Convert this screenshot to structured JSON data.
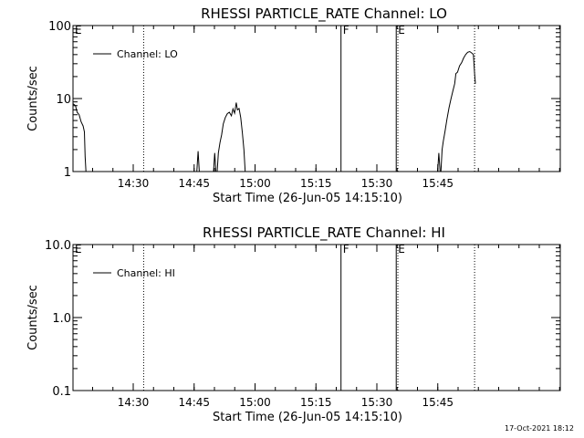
{
  "footer": {
    "timestamp": "17-Oct-2021 18:12"
  },
  "chart_data": [
    {
      "type": "line",
      "title": "RHESSI PARTICLE_RATE Channel: LO",
      "xlabel": "Start Time (26-Jun-05 14:15:10)",
      "ylabel": "Counts/sec",
      "x_units": "minutes after 14:15:10",
      "xlim": [
        0,
        120
      ],
      "ylim": [
        1,
        100
      ],
      "y_scale": "log",
      "x_ticks": [
        {
          "value": 14.83,
          "label": "14:30"
        },
        {
          "value": 29.83,
          "label": "14:45"
        },
        {
          "value": 44.83,
          "label": "15:00"
        },
        {
          "value": 59.83,
          "label": "15:15"
        },
        {
          "value": 74.83,
          "label": "15:30"
        },
        {
          "value": 89.83,
          "label": "15:45"
        }
      ],
      "y_ticks": [
        {
          "value": 1,
          "label": "1"
        },
        {
          "value": 10,
          "label": "10"
        },
        {
          "value": 100,
          "label": "100"
        }
      ],
      "legend": {
        "position": "top-left",
        "label": "Channel: LO"
      },
      "markers": [
        {
          "x": 0,
          "label": "E",
          "style": "dotted"
        },
        {
          "x": 17.4,
          "label": "",
          "style": "dotted"
        },
        {
          "x": 66.0,
          "label": "F",
          "style": "solid"
        },
        {
          "x": 79.6,
          "label": "E",
          "style": "solid"
        },
        {
          "x": 80.0,
          "label": "",
          "style": "dotted"
        },
        {
          "x": 98.9,
          "label": "",
          "style": "dotted"
        }
      ],
      "series": [
        {
          "name": "Channel: LO",
          "segments": [
            [
              [
                0,
                8.5
              ],
              [
                0.6,
                8
              ],
              [
                1.0,
                6.5
              ],
              [
                1.5,
                6
              ],
              [
                2.0,
                4.8
              ],
              [
                2.5,
                4.2
              ],
              [
                2.8,
                3.5
              ],
              [
                3.0,
                1.6
              ],
              [
                3.2,
                1
              ]
            ],
            [
              [
                30.5,
                1
              ],
              [
                30.8,
                1.9
              ],
              [
                31.1,
                1
              ]
            ],
            [
              [
                34.6,
                1
              ],
              [
                34.9,
                1.8
              ],
              [
                35.2,
                1
              ]
            ],
            [
              [
                35.5,
                1
              ],
              [
                35.8,
                1.8
              ],
              [
                36.2,
                2.5
              ],
              [
                36.6,
                3.2
              ],
              [
                37.0,
                4.5
              ],
              [
                37.5,
                5.5
              ],
              [
                38.0,
                6.2
              ],
              [
                38.5,
                6.5
              ],
              [
                39.0,
                5.8
              ],
              [
                39.4,
                7.2
              ],
              [
                39.8,
                6.3
              ],
              [
                40.2,
                8.8
              ],
              [
                40.5,
                7.0
              ],
              [
                40.9,
                7.3
              ],
              [
                41.3,
                5.5
              ],
              [
                41.7,
                3.4
              ],
              [
                42.1,
                2.0
              ],
              [
                42.4,
                1
              ]
            ],
            [
              [
                89.8,
                1
              ],
              [
                90.1,
                1.8
              ],
              [
                90.4,
                1
              ]
            ],
            [
              [
                90.6,
                1
              ],
              [
                90.9,
                2.0
              ],
              [
                91.2,
                2.6
              ],
              [
                91.6,
                3.5
              ],
              [
                92.1,
                5.2
              ],
              [
                92.6,
                7.5
              ],
              [
                93.1,
                10
              ],
              [
                93.6,
                13
              ],
              [
                94.0,
                16
              ],
              [
                94.3,
                22
              ],
              [
                94.7,
                23
              ],
              [
                95.2,
                28
              ],
              [
                95.7,
                31
              ],
              [
                96.2,
                36
              ],
              [
                96.7,
                40
              ],
              [
                97.2,
                43
              ],
              [
                97.7,
                44
              ],
              [
                98.2,
                42
              ],
              [
                98.6,
                40
              ],
              [
                98.9,
                22
              ],
              [
                99.1,
                16
              ]
            ]
          ]
        }
      ]
    },
    {
      "type": "line",
      "title": "RHESSI PARTICLE_RATE Channel: HI",
      "xlabel": "Start Time (26-Jun-05 14:15:10)",
      "ylabel": "Counts/sec",
      "x_units": "minutes after 14:15:10",
      "xlim": [
        0,
        120
      ],
      "ylim": [
        0.1,
        10
      ],
      "y_scale": "log",
      "x_ticks": [
        {
          "value": 14.83,
          "label": "14:30"
        },
        {
          "value": 29.83,
          "label": "14:45"
        },
        {
          "value": 44.83,
          "label": "15:00"
        },
        {
          "value": 59.83,
          "label": "15:15"
        },
        {
          "value": 74.83,
          "label": "15:30"
        },
        {
          "value": 89.83,
          "label": "15:45"
        }
      ],
      "y_ticks": [
        {
          "value": 0.1,
          "label": "0.1"
        },
        {
          "value": 1.0,
          "label": "1.0"
        },
        {
          "value": 10.0,
          "label": "10.0"
        }
      ],
      "legend": {
        "position": "top-left",
        "label": "Channel: HI"
      },
      "markers": [
        {
          "x": 0,
          "label": "E",
          "style": "dotted"
        },
        {
          "x": 17.4,
          "label": "",
          "style": "dotted"
        },
        {
          "x": 66.0,
          "label": "F",
          "style": "solid"
        },
        {
          "x": 79.6,
          "label": "E",
          "style": "solid"
        },
        {
          "x": 80.0,
          "label": "",
          "style": "dotted"
        },
        {
          "x": 98.9,
          "label": "",
          "style": "dotted"
        }
      ],
      "series": [
        {
          "name": "Channel: HI",
          "segments": []
        }
      ]
    }
  ]
}
